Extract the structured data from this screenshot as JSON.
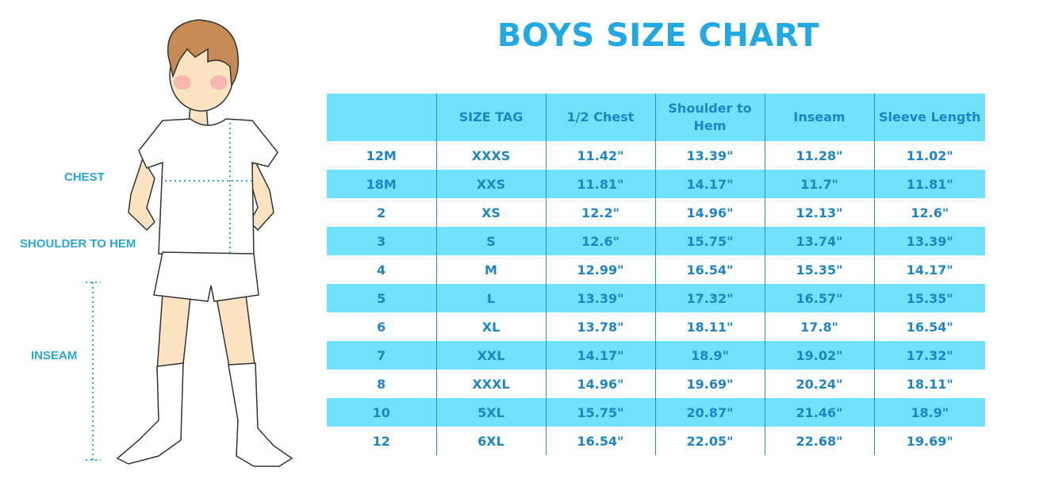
{
  "title": "BOYS SIZE CHART",
  "figure": {
    "labels": {
      "chest": "CHEST",
      "shoulder_to_hem": "SHOULDER TO HEM",
      "inseam": "INSEAM"
    },
    "measure_color": "#2aa6d8"
  },
  "table": {
    "headers": [
      "",
      "SIZE TAG",
      "1/2 Chest",
      "Shoulder to Hem",
      "Inseam",
      "Sleeve Length"
    ],
    "rows": [
      [
        "12M",
        "XXXS",
        "11.42\"",
        "13.39\"",
        "11.28\"",
        "11.02\""
      ],
      [
        "18M",
        "XXS",
        "11.81\"",
        "14.17\"",
        "11.7\"",
        "11.81\""
      ],
      [
        "2",
        "XS",
        "12.2\"",
        "14.96\"",
        "12.13\"",
        "12.6\""
      ],
      [
        "3",
        "S",
        "12.6\"",
        "15.75\"",
        "13.74\"",
        "13.39\""
      ],
      [
        "4",
        "M",
        "12.99\"",
        "16.54\"",
        "15.35\"",
        "14.17\""
      ],
      [
        "5",
        "L",
        "13.39\"",
        "17.32\"",
        "16.57\"",
        "15.35\""
      ],
      [
        "6",
        "XL",
        "13.78\"",
        "18.11\"",
        "17.8\"",
        "16.54\""
      ],
      [
        "7",
        "XXL",
        "14.17\"",
        "18.9\"",
        "19.02\"",
        "17.32\""
      ],
      [
        "8",
        "XXXL",
        "14.96\"",
        "19.69\"",
        "20.24\"",
        "18.11\""
      ],
      [
        "10",
        "5XL",
        "15.75\"",
        "20.87\"",
        "21.46\"",
        "18.9\""
      ],
      [
        "12",
        "6XL",
        "16.54\"",
        "22.05\"",
        "22.68\"",
        "19.69\""
      ]
    ]
  },
  "colors": {
    "title": "#23a9e1",
    "table_stripe": "#71e0f9",
    "table_text": "#1e86c4",
    "skin": "#fbe3c1",
    "hair": "#c68a54",
    "cheek": "#f5a3a8"
  }
}
